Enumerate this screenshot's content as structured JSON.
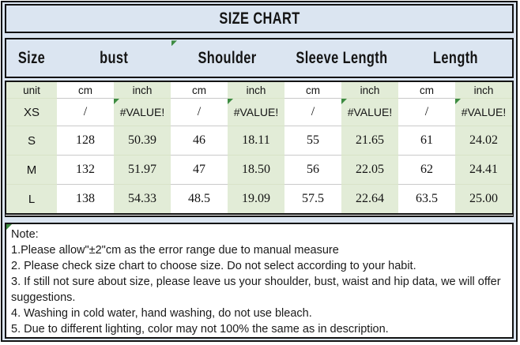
{
  "title": "SIZE CHART",
  "table": {
    "header": [
      {
        "label": "Size",
        "span": 1
      },
      {
        "label": "bust",
        "span": 2
      },
      {
        "label": "Shoulder",
        "span": 2,
        "error_marker": true
      },
      {
        "label": "Sleeve Length",
        "span": 2
      },
      {
        "label": "Length",
        "span": 2
      }
    ],
    "unit_row": [
      "unit",
      "cm",
      "inch",
      "cm",
      "inch",
      "cm",
      "inch",
      "cm",
      "inch"
    ],
    "rows": [
      [
        "XS",
        "/",
        "#VALUE!",
        "/",
        "#VALUE!",
        "/",
        "#VALUE!",
        "/",
        "#VALUE!"
      ],
      [
        "S",
        "128",
        "50.39",
        "46",
        "18.11",
        "55",
        "21.65",
        "61",
        "24.02"
      ],
      [
        "M",
        "132",
        "51.97",
        "47",
        "18.50",
        "56",
        "22.05",
        "62",
        "24.41"
      ],
      [
        "L",
        "138",
        "54.33",
        "48.5",
        "19.09",
        "57.5",
        "22.64",
        "63.5",
        "25.00"
      ]
    ]
  },
  "notes": {
    "heading": "Note:",
    "items": [
      "1.Please allow\"±2\"cm as the error range due to manual measure",
      "2. Please check size chart to choose size. Do not select according to your habit.",
      "3. If still not sure about size, please leave us your shoulder, bust, waist and hip data, we will offer suggestions.",
      "4. Washing in cold water, hand washing, do not use bleach.",
      "5. Due to different lighting, color may not 100% the same as in description."
    ]
  },
  "colors": {
    "panel_background": "#dbe5f1",
    "cell_green": "#e2ecd7",
    "error_indicator_green": "#3d8b41",
    "border_black": "#131313",
    "gridline_gray": "#c9c9c9"
  }
}
